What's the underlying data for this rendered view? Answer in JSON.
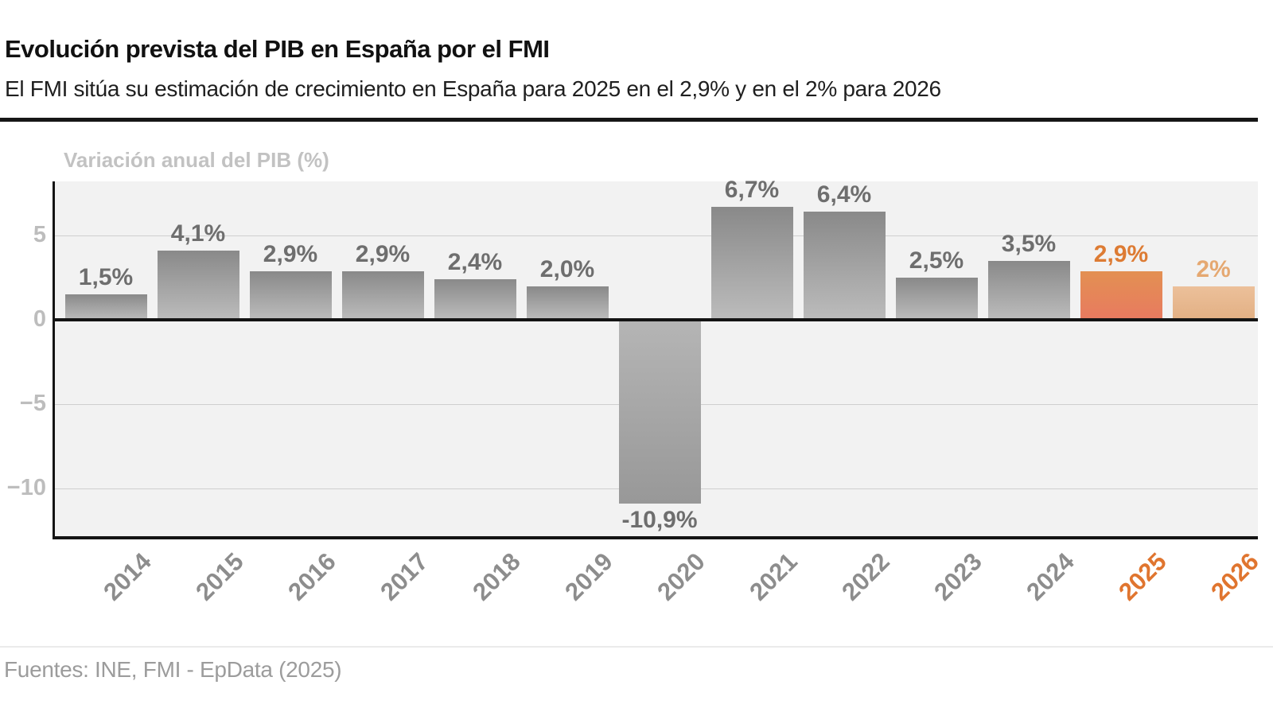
{
  "header": {
    "title": "Evolución prevista del PIB en España por el FMI",
    "subtitle": "El FMI sitúa su estimación de crecimiento en España para 2025 en el 2,9% y en el 2% para 2026"
  },
  "chart_data": {
    "type": "bar",
    "title": "Variación anual del PIB (%)",
    "xlabel": "",
    "ylabel": "Variación anual del PIB (%)",
    "categories": [
      "2014",
      "2015",
      "2016",
      "2017",
      "2018",
      "2019",
      "2020",
      "2021",
      "2022",
      "2023",
      "2024",
      "2025",
      "2026"
    ],
    "values": [
      1.5,
      4.1,
      2.9,
      2.9,
      2.4,
      2.0,
      -10.9,
      6.7,
      6.4,
      2.5,
      3.5,
      2.9,
      2.0
    ],
    "bars": [
      {
        "year": "2014",
        "value": 1.5,
        "label": "1,5%",
        "type": "historic"
      },
      {
        "year": "2015",
        "value": 4.1,
        "label": "4,1%",
        "type": "historic"
      },
      {
        "year": "2016",
        "value": 2.9,
        "label": "2,9%",
        "type": "historic"
      },
      {
        "year": "2017",
        "value": 2.9,
        "label": "2,9%",
        "type": "historic"
      },
      {
        "year": "2018",
        "value": 2.4,
        "label": "2,4%",
        "type": "historic"
      },
      {
        "year": "2019",
        "value": 2.0,
        "label": "2,0%",
        "type": "historic"
      },
      {
        "year": "2020",
        "value": -10.9,
        "label": "-10,9%",
        "type": "historic"
      },
      {
        "year": "2021",
        "value": 6.7,
        "label": "6,7%",
        "type": "historic"
      },
      {
        "year": "2022",
        "value": 6.4,
        "label": "6,4%",
        "type": "historic"
      },
      {
        "year": "2023",
        "value": 2.5,
        "label": "2,5%",
        "type": "historic"
      },
      {
        "year": "2024",
        "value": 3.5,
        "label": "3,5%",
        "type": "historic"
      },
      {
        "year": "2025",
        "value": 2.9,
        "label": "2,9%",
        "type": "forecast-2025"
      },
      {
        "year": "2026",
        "value": 2.0,
        "label": "2%",
        "type": "forecast-2026"
      }
    ],
    "forecast_years": [
      "2025",
      "2026"
    ],
    "yticks": [
      5,
      0,
      -5,
      -10
    ],
    "ytick_labels": [
      "5",
      "0",
      "−5",
      "−10"
    ],
    "gridlines": [
      5,
      -5,
      -10
    ],
    "ylim": [
      -12.9,
      8.2
    ],
    "grid": true,
    "legend": "none",
    "colors": {
      "plot_background": "#f2f2f2",
      "bar_gray_top": "#898989",
      "bar_gray_bottom": "#bcbcbc",
      "bar_negative_top": "#b5b5b5",
      "bar_negative_bottom": "#989898",
      "bar_2025_top": "#e39052",
      "bar_2025_bottom": "#e87a60",
      "bar_2026_top": "#ecc09a",
      "bar_2026_bottom": "#e2b084",
      "value_label_gray": "#6e6e6e",
      "value_label_2025": "#dd7b33",
      "value_label_2026": "#e5a871",
      "xlabel_gray": "#8d8d8d",
      "xlabel_forecast": "#e0752f",
      "axis_black": "#141414"
    }
  },
  "footer": {
    "source": "Fuentes: INE, FMI - EpData (2025)"
  }
}
